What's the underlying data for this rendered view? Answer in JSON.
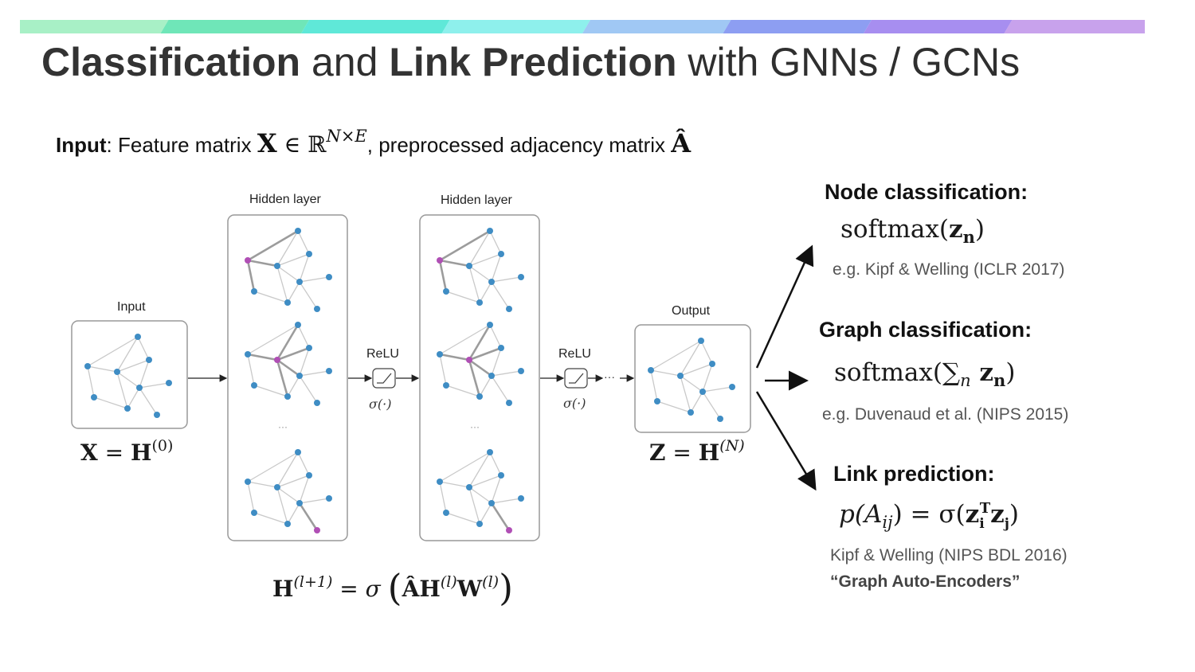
{
  "colors": {
    "gradient": [
      "#a8f0c6",
      "#6fe6b8",
      "#5fe8d8",
      "#8ef0ec",
      "#a0c8f4",
      "#8d9ef2",
      "#a78ef0",
      "#c8a2ec"
    ],
    "node": "#3f8dc4",
    "highlight": "#b04fb5",
    "edge": "#c9c9c9",
    "edge_strong": "#9c9c9c"
  },
  "title": {
    "part1": "Classification",
    "part2": " and ",
    "part3": "Link Prediction",
    "part4": " with GNNs / GCNs"
  },
  "input_line": {
    "bold": "Input",
    "text1": ": Feature matrix ",
    "matrix": "X",
    "in": " ∈ ℝ",
    "dims": "N×E",
    "text2": ", preprocessed adjacency matrix ",
    "adj": "Â"
  },
  "diagram": {
    "input_label": "Input",
    "hidden_label_1": "Hidden layer",
    "hidden_label_2": "Hidden layer",
    "output_label": "Output",
    "relu_1": "ReLU",
    "relu_2": "ReLU",
    "sigma_1": "σ(·)",
    "sigma_2": "σ(·)",
    "ellipsis": "···",
    "eq_input": {
      "lhs": "X",
      "mid": " = ",
      "rhs": "H",
      "sup": "(0)"
    },
    "eq_output": {
      "lhs": "Z",
      "mid": " = ",
      "rhs": "H",
      "sup": "(N)"
    },
    "eq_prop": {
      "h": "H",
      "sup1": "(l+1)",
      "eq": " = σ ",
      "lp": "(",
      "a": "ÂH",
      "sup2": "(l)",
      "w": "W",
      "sup3": "(l)",
      "rp": ")"
    }
  },
  "tasks": {
    "node": {
      "heading": "Node classification:",
      "formula_pre": "softmax(",
      "formula_z": "z",
      "formula_sub": "n",
      "formula_post": ")",
      "citation": "e.g. Kipf & Welling (ICLR 2017)"
    },
    "graph": {
      "heading": "Graph classification:",
      "formula_pre": "softmax(∑",
      "formula_sub": "n",
      "formula_z": " z",
      "formula_sub2": "n",
      "formula_post": ")",
      "citation": "e.g. Duvenaud et al. (NIPS 2015)"
    },
    "link": {
      "heading": "Link prediction:",
      "formula_pre": "p(A",
      "formula_sub": "ij",
      "formula_mid": ") = σ(",
      "formula_z1": "z",
      "formula_sub1": "i",
      "formula_sup": "T",
      "formula_z2": "z",
      "formula_sub2": "j",
      "formula_post": ")",
      "citation": "Kipf & Welling (NIPS BDL 2016)",
      "citation2": "“Graph Auto-Encoders”"
    }
  }
}
